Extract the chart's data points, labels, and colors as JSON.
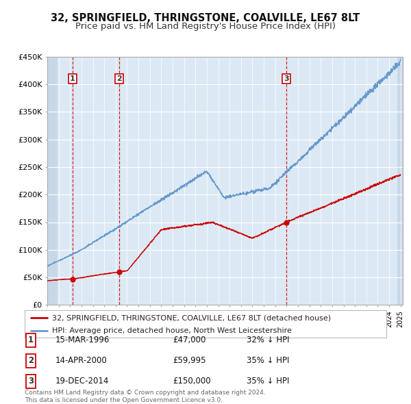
{
  "title": "32, SPRINGFIELD, THRINGSTONE, COALVILLE, LE67 8LT",
  "subtitle": "Price paid vs. HM Land Registry's House Price Index (HPI)",
  "ylim": [
    0,
    450000
  ],
  "xlim_start": 1994.0,
  "xlim_end": 2025.2,
  "yticks": [
    0,
    50000,
    100000,
    150000,
    200000,
    250000,
    300000,
    350000,
    400000,
    450000
  ],
  "ytick_labels": [
    "£0",
    "£50K",
    "£100K",
    "£150K",
    "£200K",
    "£250K",
    "£300K",
    "£350K",
    "£400K",
    "£450K"
  ],
  "sales": [
    {
      "date": 1996.21,
      "price": 47000,
      "label": "1"
    },
    {
      "date": 2000.29,
      "price": 59995,
      "label": "2"
    },
    {
      "date": 2014.97,
      "price": 150000,
      "label": "3"
    }
  ],
  "sale_table": [
    {
      "num": "1",
      "date": "15-MAR-1996",
      "price": "£47,000",
      "note": "32% ↓ HPI"
    },
    {
      "num": "2",
      "date": "14-APR-2000",
      "price": "£59,995",
      "note": "35% ↓ HPI"
    },
    {
      "num": "3",
      "date": "19-DEC-2014",
      "price": "£150,000",
      "note": "35% ↓ HPI"
    }
  ],
  "legend_entries": [
    "32, SPRINGFIELD, THRINGSTONE, COALVILLE, LE67 8LT (detached house)",
    "HPI: Average price, detached house, North West Leicestershire"
  ],
  "footer": "Contains HM Land Registry data © Crown copyright and database right 2024.\nThis data is licensed under the Open Government Licence v3.0.",
  "sale_color": "#cc0000",
  "hpi_color": "#6699cc",
  "bg_main": "#dce9f5",
  "bg_hatch": "#c8d8e8",
  "grid_color": "#ffffff",
  "spine_color": "#aaaaaa",
  "title_fontsize": 10.5,
  "subtitle_fontsize": 9.5,
  "tick_fontsize": 8,
  "legend_fontsize": 8,
  "table_fontsize": 8.5,
  "footer_fontsize": 6.5
}
